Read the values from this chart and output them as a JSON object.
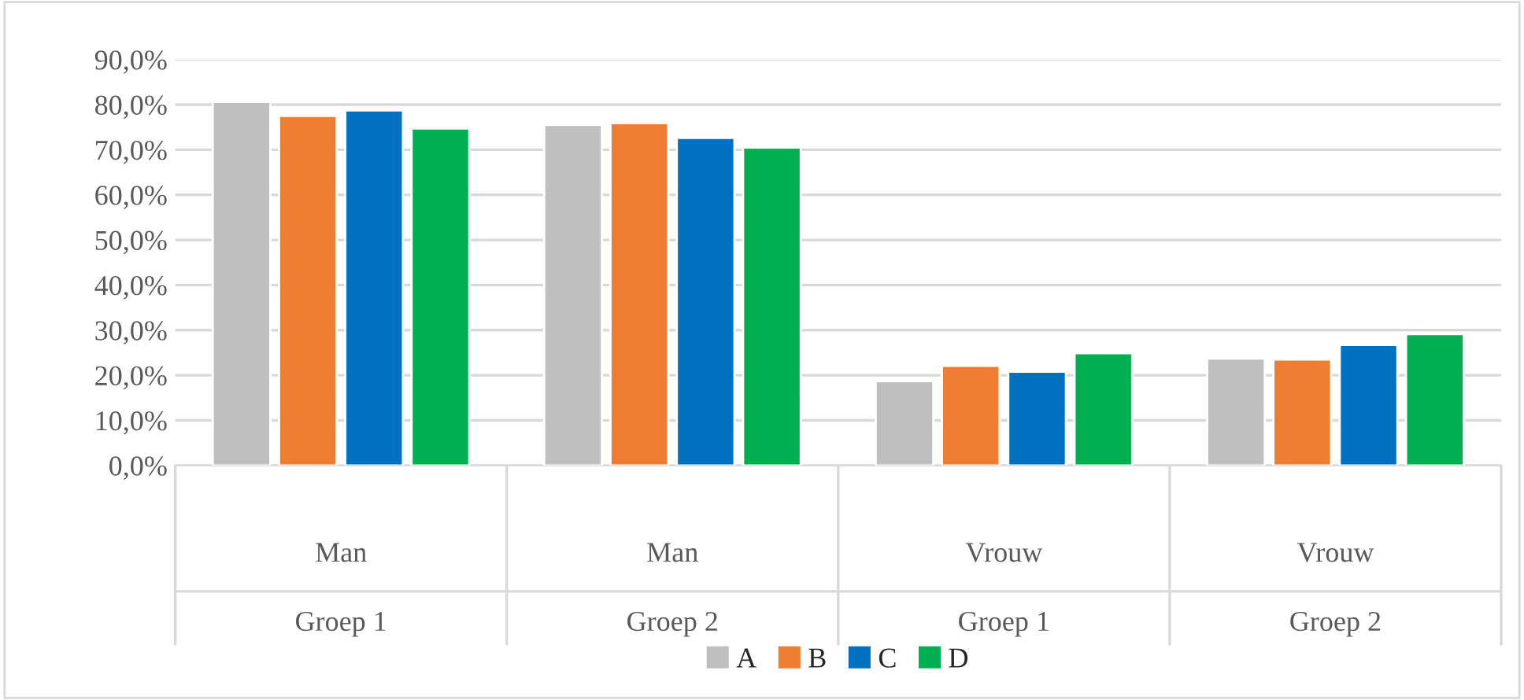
{
  "chart_data": {
    "type": "bar",
    "categories": [
      "Man\nGroep 1",
      "Man\nGroep 2",
      "Vrouw\nGroep 1",
      "Vrouw\nGroep 2"
    ],
    "series": [
      {
        "name": "A",
        "color": "#bfbfbf",
        "values": [
          80.6,
          75.5,
          18.7,
          23.7
        ]
      },
      {
        "name": "B",
        "color": "#ed7d31",
        "values": [
          77.5,
          75.9,
          22.1,
          23.5
        ]
      },
      {
        "name": "C",
        "color": "#0070c0",
        "values": [
          78.7,
          72.6,
          20.8,
          26.7
        ]
      },
      {
        "name": "D",
        "color": "#00b050",
        "values": [
          74.7,
          70.5,
          24.9,
          29.1
        ]
      }
    ],
    "ylim": [
      0,
      90
    ],
    "yticks": [
      {
        "value": 0,
        "label": "0,0%"
      },
      {
        "value": 10,
        "label": "10,0%"
      },
      {
        "value": 20,
        "label": "20,0%"
      },
      {
        "value": 30,
        "label": "30,0%"
      },
      {
        "value": 40,
        "label": "40,0%"
      },
      {
        "value": 50,
        "label": "50,0%"
      },
      {
        "value": 60,
        "label": "60,0%"
      },
      {
        "value": 70,
        "label": "70,0%"
      },
      {
        "value": 80,
        "label": "80,0%"
      },
      {
        "value": 90,
        "label": "90,0%"
      }
    ],
    "grid": "y",
    "legend": "bottom"
  }
}
